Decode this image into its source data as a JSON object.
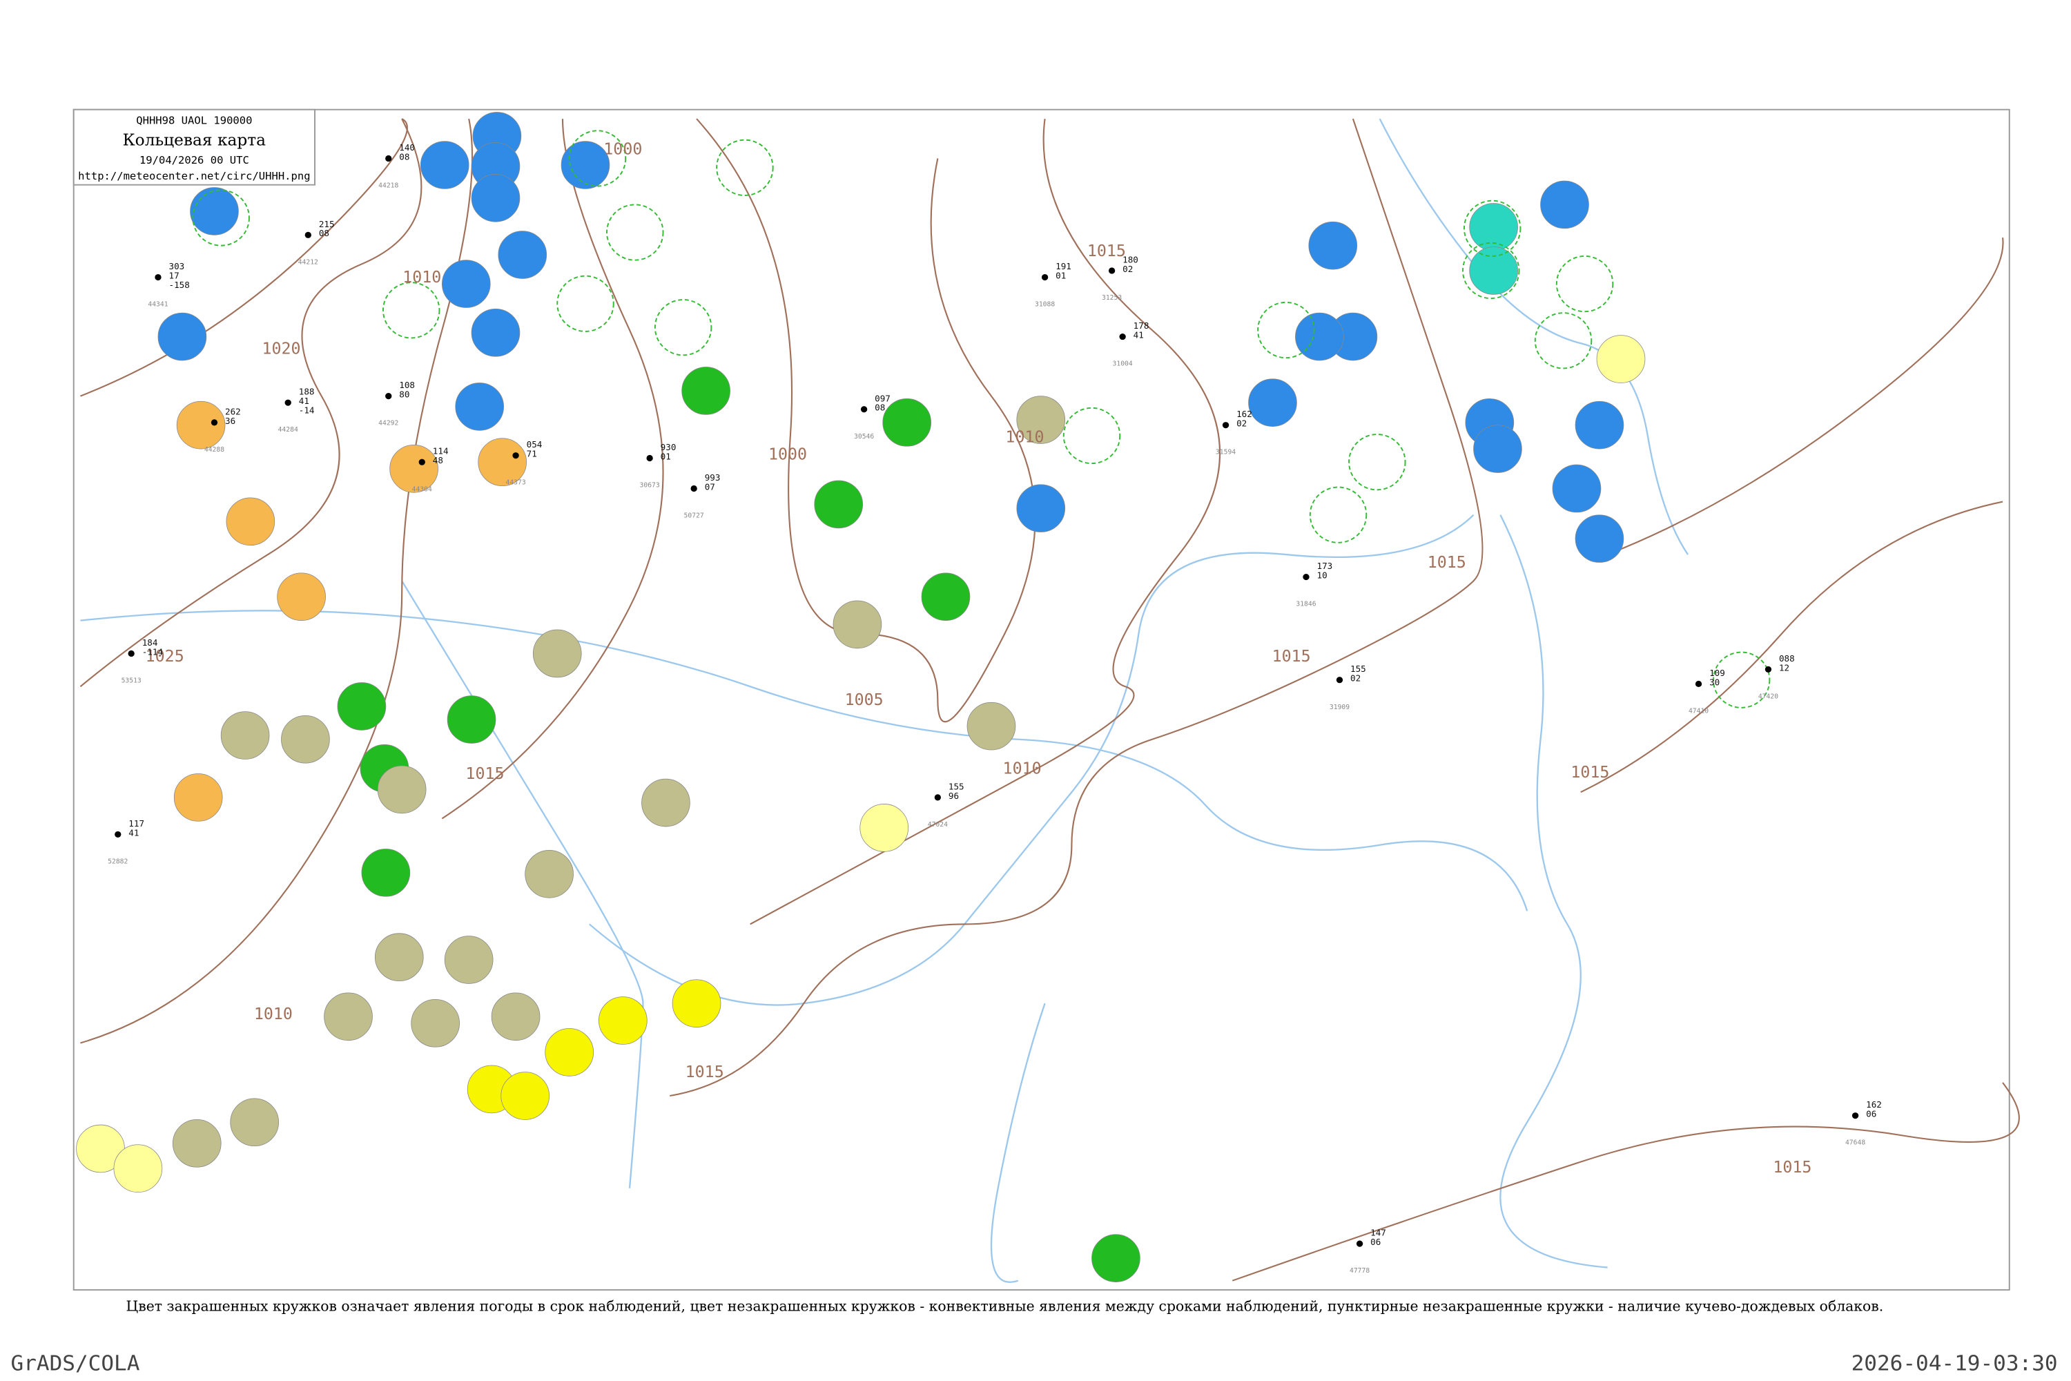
{
  "header": {
    "code": "QHHH98  UAOL  190000",
    "title": "Кольцевая карта",
    "date": "19/04/2026 00 UTC",
    "url": "http://meteocenter.net/circ/UHHH.png"
  },
  "isobar_labels": [
    "1020",
    "1025",
    "1010",
    "1010",
    "1010",
    "1000",
    "1000",
    "1005",
    "1015",
    "1015",
    "1015",
    "1015",
    "1015",
    "1010",
    "1015",
    "1015"
  ],
  "stations": [
    {
      "id": "44341",
      "lines": [
        "303",
        "17",
        "-158"
      ]
    },
    {
      "id": "44288",
      "lines": [
        "262",
        "36"
      ]
    },
    {
      "id": "44284",
      "lines": [
        "188",
        "41",
        "-14"
      ]
    },
    {
      "id": "44292",
      "lines": [
        "108",
        "80"
      ]
    },
    {
      "id": "44304",
      "lines": [
        "114",
        "48"
      ]
    },
    {
      "id": "44373",
      "lines": [
        "054",
        "71"
      ]
    },
    {
      "id": "44212",
      "lines": [
        "215",
        "08"
      ]
    },
    {
      "id": "44218",
      "lines": [
        "140",
        "08"
      ]
    },
    {
      "id": "30673",
      "lines": [
        "930",
        "01"
      ]
    },
    {
      "id": "30546",
      "lines": [
        "097",
        "08"
      ]
    },
    {
      "id": "31004",
      "lines": [
        "178",
        "41"
      ]
    },
    {
      "id": "31088",
      "lines": [
        "191",
        "01"
      ]
    },
    {
      "id": "31253",
      "lines": [
        "180",
        "02"
      ]
    },
    {
      "id": "31594",
      "lines": [
        "162",
        "02"
      ]
    },
    {
      "id": "31846",
      "lines": [
        "173",
        "10"
      ]
    },
    {
      "id": "31909",
      "lines": [
        "155",
        "02"
      ]
    },
    {
      "id": "47420",
      "lines": [
        "088",
        "12"
      ]
    },
    {
      "id": "47410",
      "lines": [
        "109",
        "30"
      ]
    },
    {
      "id": "47648",
      "lines": [
        "162",
        "06"
      ]
    },
    {
      "id": "47778",
      "lines": [
        "147",
        "06"
      ]
    },
    {
      "id": "53513",
      "lines": [
        "184",
        "-114"
      ]
    },
    {
      "id": "52882",
      "lines": [
        "117",
        "41"
      ]
    },
    {
      "id": "47024",
      "lines": [
        "155",
        "96"
      ]
    },
    {
      "id": "50727",
      "lines": [
        "993",
        "07"
      ]
    }
  ],
  "footer": {
    "caption": "Цвет закрашенных кружков означает явления погоды в срок наблюдений, цвет незакрашенных кружков - конвективные явления между сроками наблюдений, пунктирные незакрашенные кружки - наличие кучево-дождевых облаков.",
    "left": "GrADS/COLA",
    "right": "2026-04-19-03:30"
  }
}
